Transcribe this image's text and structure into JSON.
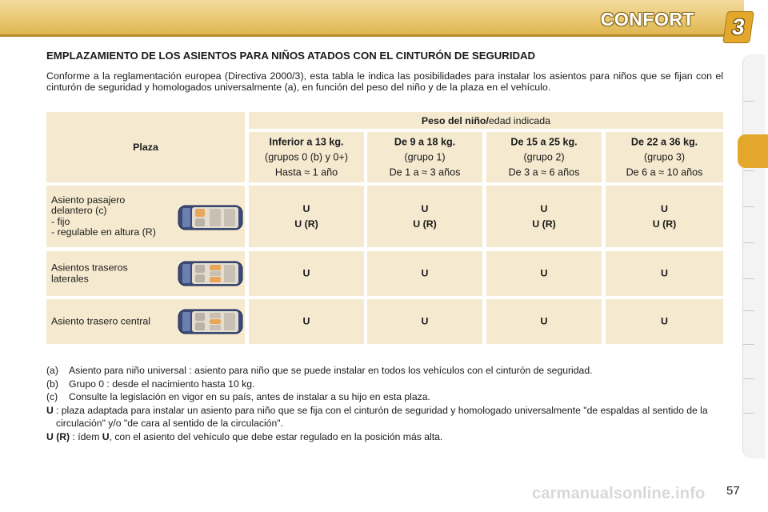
{
  "header": {
    "chapter_title": "CONFORT",
    "chapter_number": "3"
  },
  "section_title": "EMPLAZAMIENTO DE LOS ASIENTOS PARA NIÑOS ATADOS CON EL CINTURÓN DE SEGURIDAD",
  "intro": "Conforme a la reglamentación europea (Directiva 2000/3), esta tabla le indica las posibilidades para instalar los asientos para niños que se fijan con el cinturón de seguridad y homologados universalmente (a), en función del peso del niño y de la plaza en el vehículo.",
  "table": {
    "plaza_header": "Plaza",
    "weight_header_bold": "Peso del niño/",
    "weight_header_rest": "edad indicada",
    "columns": [
      {
        "weight": "Inferior a 13 kg.",
        "group": "(grupos 0 (b) y 0+)",
        "age": "Hasta ≈ 1 año"
      },
      {
        "weight": "De 9 a 18 kg.",
        "group": "(grupo 1)",
        "age": "De 1 a ≈ 3 años"
      },
      {
        "weight": "De 15 a 25 kg.",
        "group": "(grupo 2)",
        "age": "De 3 a ≈ 6 años"
      },
      {
        "weight": "De 22 a 36 kg.",
        "group": "(grupo 3)",
        "age": "De 6 a ≈ 10 años"
      }
    ],
    "rows": [
      {
        "label_lines": [
          "Asiento pasajero",
          "delantero (c)",
          "- fijo",
          "- regulable en altura (R)"
        ],
        "values": [
          [
            "U",
            "U (R)"
          ],
          [
            "U",
            "U (R)"
          ],
          [
            "U",
            "U (R)"
          ],
          [
            "U",
            "U (R)"
          ]
        ]
      },
      {
        "label_lines": [
          "Asientos traseros",
          "laterales"
        ],
        "values": [
          [
            "U"
          ],
          [
            "U"
          ],
          [
            "U"
          ],
          [
            "U"
          ]
        ]
      },
      {
        "label_lines": [
          "Asiento trasero central"
        ],
        "values": [
          [
            "U"
          ],
          [
            "U"
          ],
          [
            "U"
          ],
          [
            "U"
          ]
        ]
      }
    ]
  },
  "notes": {
    "a_key": "(a)",
    "a_text": "Asiento para niño universal : asiento para niño que se puede instalar en todos los vehículos con el cinturón de seguridad.",
    "b_key": "(b)",
    "b_text": "Grupo 0 : desde el nacimiento hasta 10 kg.",
    "c_key": "(c)",
    "c_text": "Consulte la legislación en vigor en su país, antes de instalar a su hijo en esta plaza.",
    "u_key": "U",
    "u_text": ":  plaza adaptada para instalar un asiento para niño que se fija  con el cinturón de seguridad y homologado universalmente \"de espaldas al sentido de la circulación\" y/o  \"de cara al sentido de la circulación\".",
    "ur_key": "U (R)",
    "ur_text_1": " : ídem ",
    "ur_u": "U",
    "ur_text_2": ", con el asiento del vehículo que debe estar regulado en la posición más alta."
  },
  "page_number": "57",
  "watermark": "carmanualsonline.info"
}
